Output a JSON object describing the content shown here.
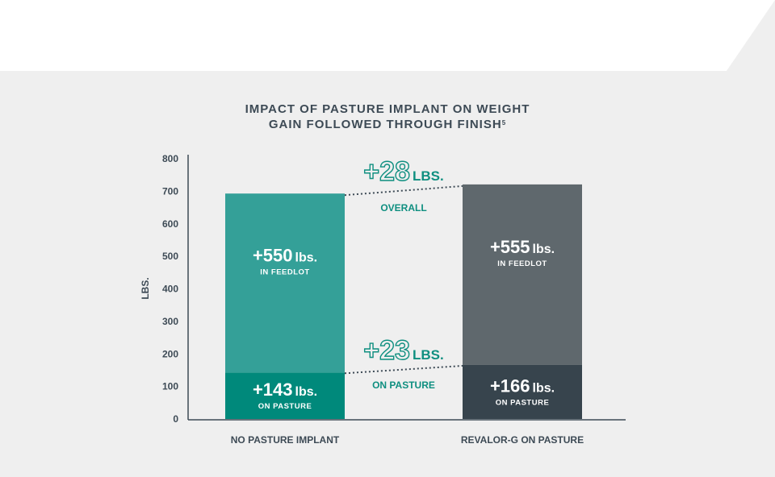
{
  "colors": {
    "background": "#efefef",
    "axis": "#3d4a55",
    "feedlot_no_implant": "#34a098",
    "pasture_no_implant": "#00897b",
    "feedlot_revalor": "#5f686d",
    "pasture_revalor": "#37444d",
    "accent_text": "#0f8f80"
  },
  "chart_data": {
    "type": "bar",
    "title_line1": "IMPACT OF PASTURE IMPLANT ON WEIGHT",
    "title_line2": "GAIN FOLLOWED THROUGH FINISH",
    "title_superscript": "5",
    "ylabel": "LBS.",
    "ylim": [
      0,
      800
    ],
    "yticks": [
      0,
      100,
      200,
      300,
      400,
      500,
      600,
      700,
      800
    ],
    "stacked": true,
    "categories": [
      "NO PASTURE IMPLANT",
      "REVALOR-G ON PASTURE"
    ],
    "series": [
      {
        "name": "ON PASTURE",
        "values": [
          143,
          166
        ],
        "labels": [
          "+143",
          "+166"
        ],
        "unit": "lbs.",
        "sublabel": "ON PASTURE"
      },
      {
        "name": "IN FEEDLOT",
        "values": [
          550,
          555
        ],
        "labels": [
          "+550",
          "+555"
        ],
        "unit": "lbs.",
        "sublabel": "IN FEEDLOT"
      }
    ],
    "annotations": [
      {
        "value": "+28",
        "unit": "LBS.",
        "caption": "OVERALL"
      },
      {
        "value": "+23",
        "unit": "LBS.",
        "caption": "ON PASTURE"
      }
    ]
  }
}
